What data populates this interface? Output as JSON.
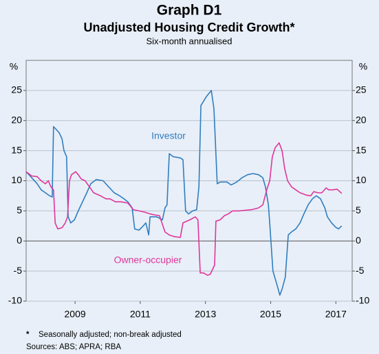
{
  "chart_data": {
    "type": "line",
    "title": "Graph D1",
    "subtitle": "Unadjusted Housing Credit Growth*",
    "note": "Six-month annualised",
    "y_unit": "%",
    "footnote_marker": "*",
    "footnote": "Seasonally adjusted; non-break adjusted",
    "sources": "Sources: ABS; APRA; RBA",
    "xlim": [
      2008,
      2018
    ],
    "xticks": [
      {
        "value": 2009.5,
        "label": "2009"
      },
      {
        "value": 2011.5,
        "label": "2011"
      },
      {
        "value": 2013.5,
        "label": "2013"
      },
      {
        "value": 2015.5,
        "label": "2015"
      },
      {
        "value": 2017.5,
        "label": "2017"
      }
    ],
    "ylim": [
      -10,
      30
    ],
    "yticks": [
      -10,
      -5,
      0,
      5,
      10,
      15,
      20,
      25
    ],
    "grid": true,
    "series": [
      {
        "name": "Investor",
        "color": "#2f7dbf",
        "x": [
          2008.0,
          2008.17,
          2008.34,
          2008.46,
          2008.59,
          2008.72,
          2008.8,
          2008.84,
          2009.01,
          2009.1,
          2009.16,
          2009.24,
          2009.29,
          2009.37,
          2009.48,
          2009.6,
          2009.73,
          2009.86,
          2009.98,
          2010.15,
          2010.36,
          2010.53,
          2010.7,
          2010.87,
          2011.0,
          2011.12,
          2011.25,
          2011.33,
          2011.46,
          2011.59,
          2011.67,
          2011.76,
          2011.8,
          2012.01,
          2012.18,
          2012.26,
          2012.32,
          2012.39,
          2012.51,
          2012.73,
          2012.81,
          2012.89,
          2012.98,
          2013.11,
          2013.23,
          2013.3,
          2013.36,
          2013.53,
          2013.68,
          2013.76,
          2013.86,
          2013.95,
          2014.16,
          2014.29,
          2014.46,
          2014.62,
          2014.79,
          2014.96,
          2015.13,
          2015.26,
          2015.34,
          2015.43,
          2015.47,
          2015.57,
          2015.68,
          2015.78,
          2015.85,
          2015.95,
          2016.04,
          2016.14,
          2016.27,
          2016.4,
          2016.52,
          2016.65,
          2016.78,
          2016.9,
          2017.03,
          2017.16,
          2017.24,
          2017.37,
          2017.49,
          2017.58,
          2017.68
        ],
        "values": [
          11.5,
          10.5,
          9.5,
          8.5,
          8,
          7.5,
          7.3,
          19,
          18,
          17,
          15,
          14,
          4,
          3,
          3.5,
          5,
          6.5,
          8,
          9.5,
          10.2,
          10,
          9,
          8,
          7.5,
          7,
          6.5,
          5.5,
          2,
          1.8,
          2.5,
          3,
          1,
          4,
          4,
          3.5,
          5.5,
          6,
          14.5,
          14,
          13.8,
          13.5,
          5,
          4.5,
          5,
          5.2,
          9,
          22.5,
          24,
          25,
          22,
          9.5,
          9.8,
          9.8,
          9.3,
          9.8,
          10.5,
          11,
          11.2,
          11,
          10.5,
          9,
          6,
          3,
          -5,
          -7,
          -9,
          -8,
          -6,
          1,
          1.5,
          2,
          3,
          4.5,
          6,
          7,
          7.5,
          7,
          5.5,
          4,
          3,
          2.3,
          2,
          2.5
        ]
      },
      {
        "name": "Owner-occupier",
        "color": "#e0359b",
        "x": [
          2008.0,
          2008.17,
          2008.34,
          2008.46,
          2008.59,
          2008.68,
          2008.76,
          2008.84,
          2008.89,
          2008.97,
          2009.1,
          2009.2,
          2009.27,
          2009.33,
          2009.39,
          2009.52,
          2009.6,
          2009.69,
          2009.81,
          2009.94,
          2010.07,
          2010.28,
          2010.45,
          2010.57,
          2010.74,
          2010.91,
          2011.12,
          2011.29,
          2011.46,
          2011.63,
          2011.8,
          2011.97,
          2012.09,
          2012.26,
          2012.39,
          2012.56,
          2012.73,
          2012.81,
          2013.02,
          2013.19,
          2013.27,
          2013.34,
          2013.44,
          2013.57,
          2013.65,
          2013.78,
          2013.82,
          2013.95,
          2014.08,
          2014.2,
          2014.33,
          2014.54,
          2014.71,
          2014.92,
          2015.13,
          2015.26,
          2015.38,
          2015.47,
          2015.55,
          2015.64,
          2015.76,
          2015.85,
          2015.93,
          2016.02,
          2016.14,
          2016.27,
          2016.4,
          2016.61,
          2016.73,
          2016.82,
          2016.95,
          2017.07,
          2017.2,
          2017.28,
          2017.41,
          2017.54,
          2017.68
        ],
        "values": [
          11.5,
          10.8,
          10.7,
          10,
          9.5,
          10,
          9,
          8.5,
          3,
          2,
          2.2,
          3,
          4,
          10,
          11,
          11.5,
          11,
          10.3,
          10,
          9,
          8,
          7.5,
          7,
          7,
          6.5,
          6.5,
          6.3,
          5.2,
          5,
          4.8,
          4.5,
          4.3,
          4.2,
          1.5,
          1,
          0.7,
          0.6,
          3,
          3.5,
          4,
          3.5,
          -5.3,
          -5.3,
          -5.7,
          -5.5,
          -4,
          3.3,
          3.5,
          4.2,
          4.5,
          5,
          5,
          5.1,
          5.2,
          5.5,
          6,
          8.5,
          10,
          14,
          15.5,
          16.3,
          15,
          12,
          10,
          9,
          8.5,
          8,
          7.6,
          7.5,
          8.2,
          8,
          8,
          8.8,
          8.5,
          8.5,
          8.6,
          7.9
        ]
      }
    ]
  }
}
